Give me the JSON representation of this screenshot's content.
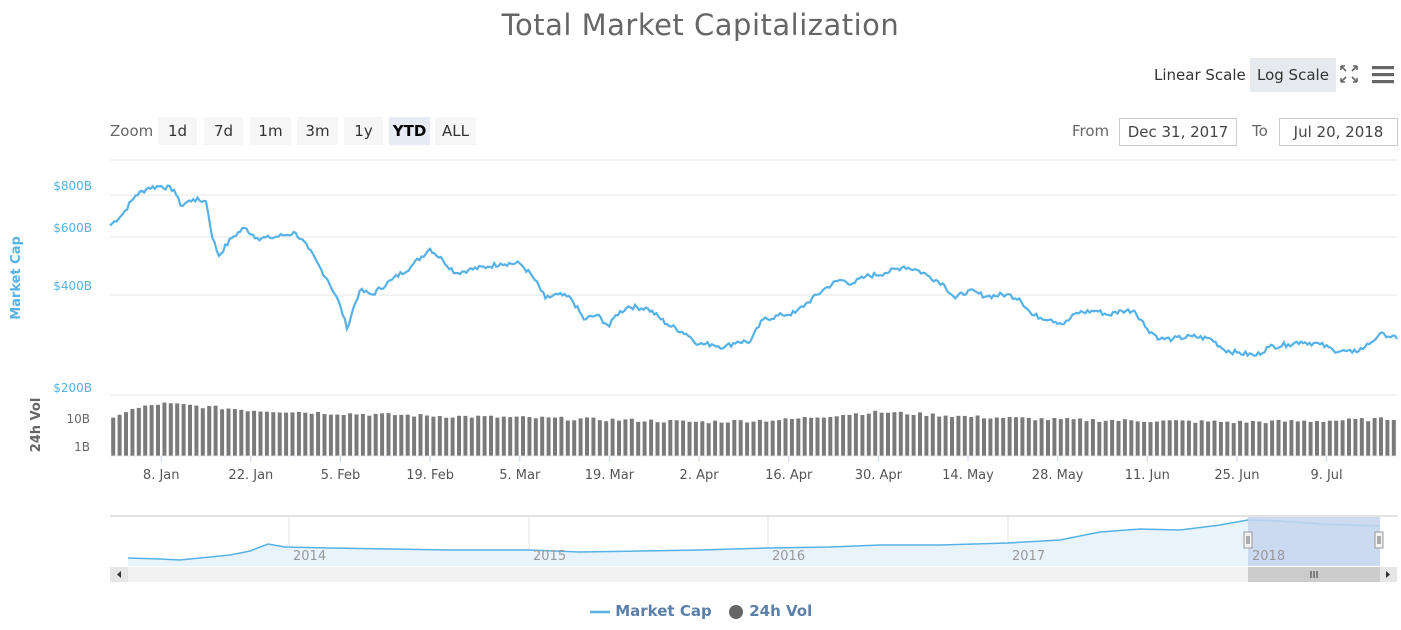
{
  "title": "Total Market Capitalization",
  "scale_buttons": {
    "linear": "Linear Scale",
    "log": "Log Scale",
    "active": "log"
  },
  "icons": {
    "fullscreen": "fullscreen-icon",
    "menu": "hamburger-menu-icon"
  },
  "zoom": {
    "label": "Zoom",
    "buttons": [
      "1d",
      "7d",
      "1m",
      "3m",
      "1y",
      "YTD",
      "ALL"
    ],
    "active": "YTD"
  },
  "range": {
    "from_label": "From",
    "from_value": "Dec 31, 2017",
    "to_label": "To",
    "to_value": "Jul 20, 2018"
  },
  "legend": {
    "market_cap": "Market Cap",
    "volume": "24h Vol"
  },
  "colors": {
    "market_cap": "#56b2e6",
    "volume": "#7a7a7a",
    "axis_label": "#56b2e6",
    "navigator_fill": "#c5d3ef"
  },
  "chart_data": {
    "type": "line",
    "title": "Total Market Capitalization",
    "date_range": [
      "2017-12-31",
      "2018-07-20"
    ],
    "x_ticks": [
      "8. Jan",
      "22. Jan",
      "5. Feb",
      "19. Feb",
      "5. Mar",
      "19. Mar",
      "2. Apr",
      "16. Apr",
      "30. Apr",
      "14. May",
      "28. May",
      "11. Jun",
      "25. Jun",
      "9. Jul"
    ],
    "y_axis": {
      "label": "Market Cap",
      "scale": "log",
      "ticks": [
        "$200B",
        "$400B",
        "$600B",
        "$800B"
      ]
    },
    "volume_axis": {
      "label": "24h Vol",
      "scale": "log",
      "ticks": [
        "1B",
        "10B"
      ]
    },
    "series": [
      {
        "name": "Market Cap",
        "unit": "billion USD",
        "points": [
          [
            "2017-12-31",
            610
          ],
          [
            "2018-01-02",
            660
          ],
          [
            "2018-01-04",
            750
          ],
          [
            "2018-01-06",
            790
          ],
          [
            "2018-01-08",
            800
          ],
          [
            "2018-01-10",
            780
          ],
          [
            "2018-01-11",
            700
          ],
          [
            "2018-01-13",
            730
          ],
          [
            "2018-01-15",
            720
          ],
          [
            "2018-01-16",
            560
          ],
          [
            "2018-01-17",
            495
          ],
          [
            "2018-01-19",
            560
          ],
          [
            "2018-01-21",
            600
          ],
          [
            "2018-01-23",
            560
          ],
          [
            "2018-01-25",
            560
          ],
          [
            "2018-01-27",
            570
          ],
          [
            "2018-01-29",
            580
          ],
          [
            "2018-01-31",
            520
          ],
          [
            "2018-02-02",
            450
          ],
          [
            "2018-02-03",
            420
          ],
          [
            "2018-02-05",
            350
          ],
          [
            "2018-02-06",
            300
          ],
          [
            "2018-02-08",
            390
          ],
          [
            "2018-02-10",
            380
          ],
          [
            "2018-02-13",
            420
          ],
          [
            "2018-02-16",
            460
          ],
          [
            "2018-02-19",
            520
          ],
          [
            "2018-02-21",
            480
          ],
          [
            "2018-02-23",
            440
          ],
          [
            "2018-02-25",
            450
          ],
          [
            "2018-02-28",
            460
          ],
          [
            "2018-03-02",
            470
          ],
          [
            "2018-03-05",
            470
          ],
          [
            "2018-03-07",
            430
          ],
          [
            "2018-03-09",
            370
          ],
          [
            "2018-03-11",
            380
          ],
          [
            "2018-03-13",
            370
          ],
          [
            "2018-03-15",
            320
          ],
          [
            "2018-03-17",
            330
          ],
          [
            "2018-03-19",
            305
          ],
          [
            "2018-03-20",
            330
          ],
          [
            "2018-03-22",
            350
          ],
          [
            "2018-03-25",
            345
          ],
          [
            "2018-03-28",
            310
          ],
          [
            "2018-03-31",
            290
          ],
          [
            "2018-04-02",
            270
          ],
          [
            "2018-04-04",
            270
          ],
          [
            "2018-04-06",
            265
          ],
          [
            "2018-04-08",
            275
          ],
          [
            "2018-04-10",
            275
          ],
          [
            "2018-04-12",
            320
          ],
          [
            "2018-04-15",
            330
          ],
          [
            "2018-04-17",
            335
          ],
          [
            "2018-04-19",
            360
          ],
          [
            "2018-04-22",
            400
          ],
          [
            "2018-04-24",
            420
          ],
          [
            "2018-04-26",
            410
          ],
          [
            "2018-04-28",
            430
          ],
          [
            "2018-05-01",
            440
          ],
          [
            "2018-05-04",
            460
          ],
          [
            "2018-05-06",
            450
          ],
          [
            "2018-05-08",
            430
          ],
          [
            "2018-05-10",
            410
          ],
          [
            "2018-05-12",
            370
          ],
          [
            "2018-05-14",
            390
          ],
          [
            "2018-05-17",
            375
          ],
          [
            "2018-05-20",
            380
          ],
          [
            "2018-05-22",
            370
          ],
          [
            "2018-05-24",
            330
          ],
          [
            "2018-05-27",
            320
          ],
          [
            "2018-05-29",
            310
          ],
          [
            "2018-05-31",
            335
          ],
          [
            "2018-06-03",
            340
          ],
          [
            "2018-06-05",
            330
          ],
          [
            "2018-06-07",
            340
          ],
          [
            "2018-06-09",
            340
          ],
          [
            "2018-06-11",
            300
          ],
          [
            "2018-06-13",
            280
          ],
          [
            "2018-06-15",
            280
          ],
          [
            "2018-06-18",
            285
          ],
          [
            "2018-06-21",
            280
          ],
          [
            "2018-06-23",
            260
          ],
          [
            "2018-06-25",
            255
          ],
          [
            "2018-06-28",
            250
          ],
          [
            "2018-06-30",
            265
          ],
          [
            "2018-07-03",
            270
          ],
          [
            "2018-07-05",
            275
          ],
          [
            "2018-07-08",
            270
          ],
          [
            "2018-07-10",
            260
          ],
          [
            "2018-07-13",
            255
          ],
          [
            "2018-07-15",
            265
          ],
          [
            "2018-07-17",
            285
          ],
          [
            "2018-07-18",
            290
          ],
          [
            "2018-07-20",
            280
          ]
        ]
      },
      {
        "name": "24h Vol",
        "unit": "billion USD",
        "points": [
          [
            "2018-01-01",
            18
          ],
          [
            "2018-01-08",
            40
          ],
          [
            "2018-01-15",
            32
          ],
          [
            "2018-01-22",
            25
          ],
          [
            "2018-02-05",
            20
          ],
          [
            "2018-02-19",
            17
          ],
          [
            "2018-03-05",
            15
          ],
          [
            "2018-03-19",
            13
          ],
          [
            "2018-04-02",
            11
          ],
          [
            "2018-04-16",
            13
          ],
          [
            "2018-04-30",
            22
          ],
          [
            "2018-05-14",
            16
          ],
          [
            "2018-05-28",
            13
          ],
          [
            "2018-06-11",
            12
          ],
          [
            "2018-06-25",
            11
          ],
          [
            "2018-07-09",
            12
          ],
          [
            "2018-07-20",
            14
          ]
        ]
      }
    ],
    "navigator": {
      "x_ticks": [
        "2014",
        "2015",
        "2016",
        "2017",
        "2018"
      ],
      "selected_range": [
        "2018-01-01",
        "2018-07-20"
      ]
    }
  }
}
